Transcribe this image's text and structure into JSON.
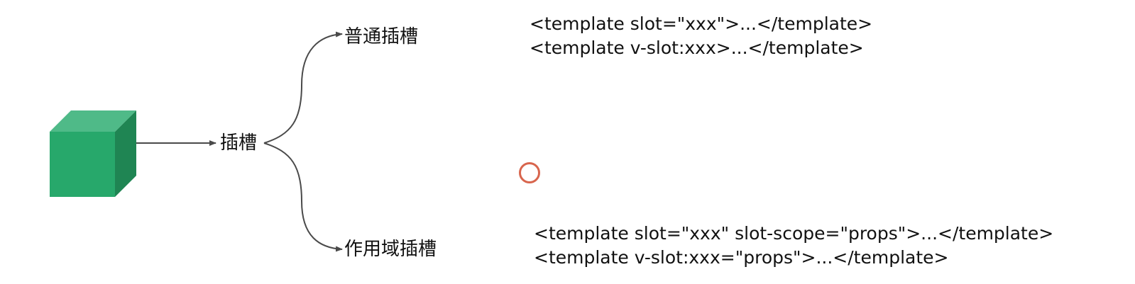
{
  "nodes": {
    "root": "插槽",
    "branch_normal": "普通插槽",
    "branch_scoped": "作用域插槽"
  },
  "code": {
    "normal": [
      "<template slot=\"xxx\">...</template>",
      "<template v-slot:xxx>...</template>"
    ],
    "scoped": [
      "<template slot=\"xxx\" slot-scope=\"props\">...</template>",
      "<template v-slot:xxx=\"props\">...</template>"
    ]
  },
  "icons": {
    "component": "cube-icon",
    "pointer": "cursor-ring-icon"
  },
  "colors": {
    "cube_front": "#27a86b",
    "cube_top": "#4fba88",
    "cube_side": "#1f8553",
    "connector": "#4a4a4a",
    "cursor_ring": "#d8654d"
  }
}
